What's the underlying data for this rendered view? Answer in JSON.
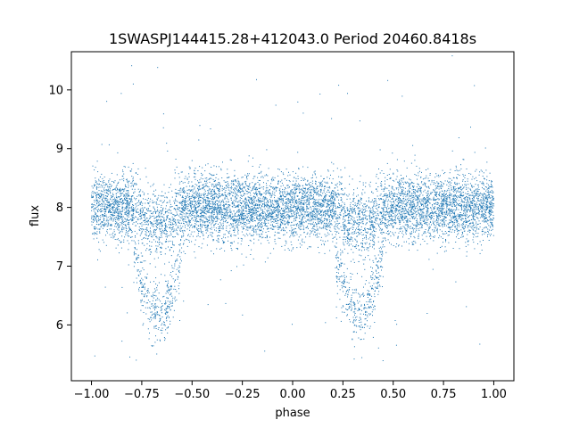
{
  "chart_data": {
    "type": "scatter",
    "title": "1SWASPJ144415.28+412043.0 Period 20460.8418s",
    "xlabel": "phase",
    "ylabel": "flux",
    "xlim": [
      -1.1,
      1.1
    ],
    "ylim": [
      5.05,
      10.65
    ],
    "xticks": [
      -1.0,
      -0.75,
      -0.5,
      -0.25,
      0.0,
      0.25,
      0.5,
      0.75,
      1.0
    ],
    "xtick_labels": [
      "−1.00",
      "−0.75",
      "−0.50",
      "−0.25",
      "0.00",
      "0.25",
      "0.50",
      "0.75",
      "1.00"
    ],
    "yticks": [
      6,
      7,
      8,
      9,
      10
    ],
    "ytick_labels": [
      "6",
      "7",
      "8",
      "9",
      "10"
    ],
    "marker_color": "#1f77b4",
    "grid": false,
    "series": [
      {
        "phase_range": [
          -1.0,
          1.0
        ],
        "baseline_flux": 8.0,
        "baseline_scatter": 0.28,
        "eclipse_centers": [
          -0.67,
          0.33
        ],
        "eclipse_min_flux": 6.2,
        "eclipse_half_width": 0.12,
        "outliers_flux_range": [
          5.3,
          10.6
        ]
      }
    ]
  }
}
